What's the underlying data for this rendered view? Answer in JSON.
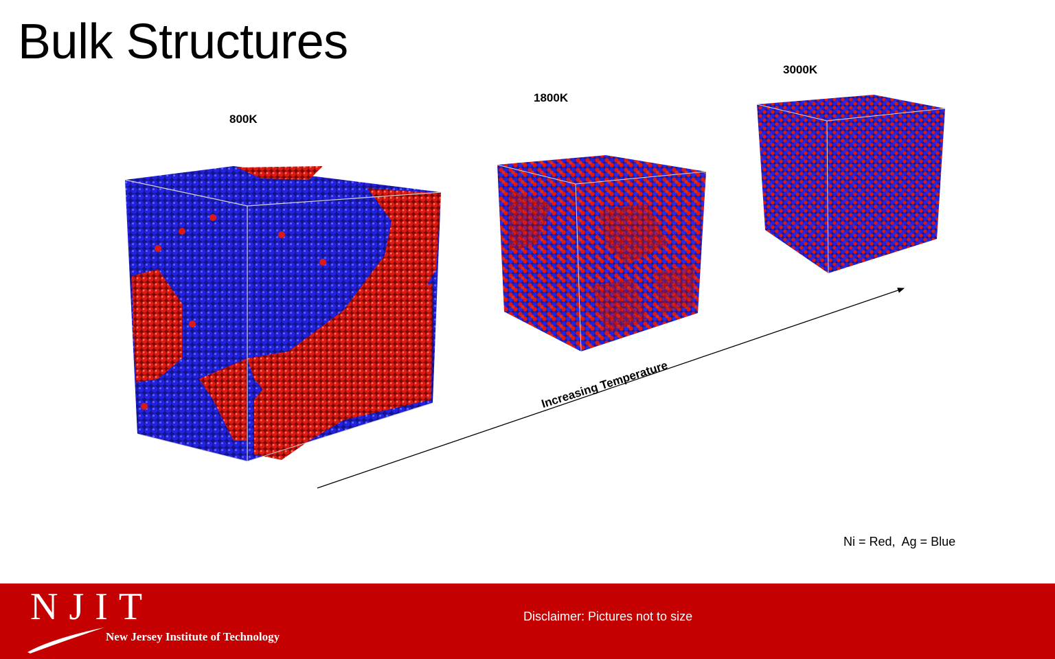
{
  "slide": {
    "title": "Bulk Structures"
  },
  "structures": [
    {
      "label": "800K"
    },
    {
      "label": "1800K"
    },
    {
      "label": "3000K"
    }
  ],
  "arrow": {
    "label": "Increasing Temperature"
  },
  "legend": {
    "text": "Ni = Red,  Ag = Blue"
  },
  "colors": {
    "ni": "#d41a14",
    "ag": "#1a1ad6",
    "footer": "#c40000"
  },
  "footer": {
    "logo_letters": "NJIT",
    "logo_name": "New Jersey Institute of Technology",
    "disclaimer": "Disclaimer: Pictures not to size"
  }
}
